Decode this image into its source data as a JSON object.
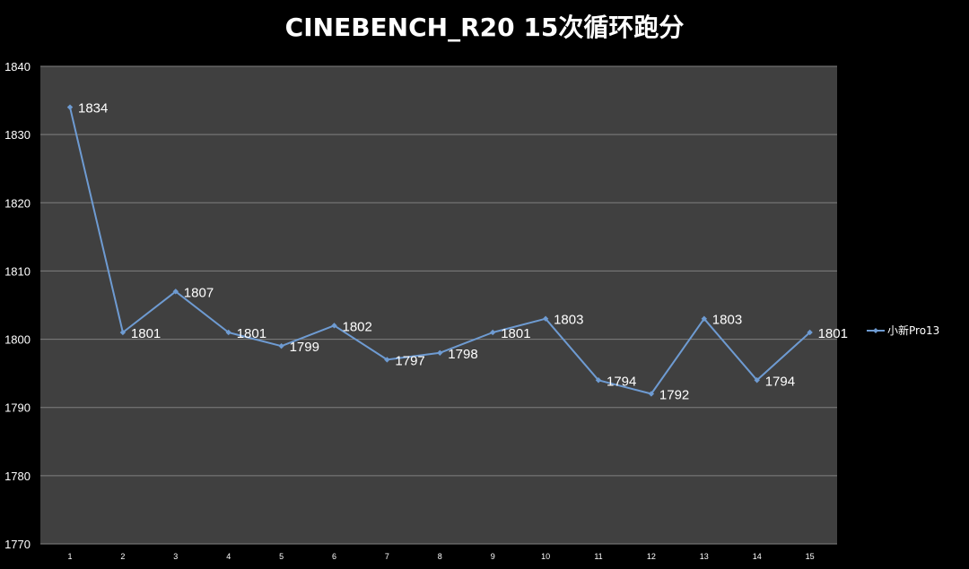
{
  "chart_data": {
    "type": "line",
    "title": "CINEBENCH_R20 15次循环跑分",
    "x": [
      "1",
      "2",
      "3",
      "4",
      "5",
      "6",
      "7",
      "8",
      "9",
      "10",
      "11",
      "12",
      "13",
      "14",
      "15"
    ],
    "series": [
      {
        "name": "小新Pro13",
        "values": [
          1834,
          1801,
          1807,
          1801,
          1799,
          1802,
          1797,
          1798,
          1801,
          1803,
          1794,
          1792,
          1803,
          1794,
          1801
        ],
        "color": "#6e9bd2"
      }
    ],
    "yticks": [
      "1770",
      "1780",
      "1790",
      "1800",
      "1810",
      "1820",
      "1830",
      "1840"
    ],
    "ylim": [
      1770,
      1840
    ],
    "grid": true,
    "legend": "right",
    "colors": {
      "background": "#000000",
      "plot_background": "#404040",
      "gridline": "#7f7f7f",
      "text": "#ffffff"
    }
  }
}
